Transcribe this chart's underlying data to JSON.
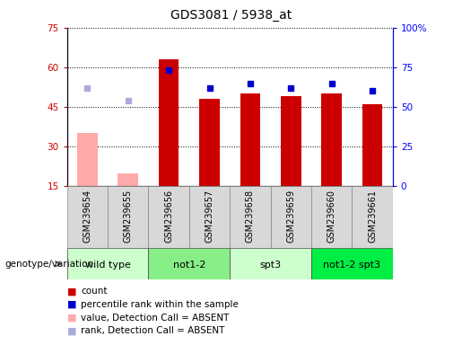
{
  "title": "GDS3081 / 5938_at",
  "samples": [
    "GSM239654",
    "GSM239655",
    "GSM239656",
    "GSM239657",
    "GSM239658",
    "GSM239659",
    "GSM239660",
    "GSM239661"
  ],
  "count_values": [
    35.0,
    20.0,
    63.0,
    48.0,
    50.0,
    49.0,
    50.0,
    46.0
  ],
  "rank_values": [
    62.0,
    54.0,
    73.0,
    62.0,
    65.0,
    62.0,
    65.0,
    60.0
  ],
  "absent_mask": [
    true,
    true,
    false,
    false,
    false,
    false,
    false,
    false
  ],
  "ylim_left": [
    15,
    75
  ],
  "ylim_right": [
    0,
    100
  ],
  "yticks_left": [
    15,
    30,
    45,
    60,
    75
  ],
  "yticks_right": [
    0,
    25,
    50,
    75,
    100
  ],
  "yticklabels_right": [
    "0",
    "25",
    "50",
    "75",
    "100%"
  ],
  "bar_color_present": "#cc0000",
  "bar_color_absent": "#ffaaaa",
  "rank_color_present": "#0000cc",
  "rank_color_absent": "#aaaadd",
  "group_spans": [
    {
      "label": "wild type",
      "start": 0,
      "end": 2,
      "color": "#ccffcc"
    },
    {
      "label": "not1-2",
      "start": 2,
      "end": 4,
      "color": "#88ee88"
    },
    {
      "label": "spt3",
      "start": 4,
      "end": 6,
      "color": "#ccffcc"
    },
    {
      "label": "not1-2 spt3",
      "start": 6,
      "end": 8,
      "color": "#00ee44"
    }
  ],
  "legend_items": [
    {
      "label": "count",
      "color": "#cc0000"
    },
    {
      "label": "percentile rank within the sample",
      "color": "#0000cc"
    },
    {
      "label": "value, Detection Call = ABSENT",
      "color": "#ffaaaa"
    },
    {
      "label": "rank, Detection Call = ABSENT",
      "color": "#aaaadd"
    }
  ]
}
